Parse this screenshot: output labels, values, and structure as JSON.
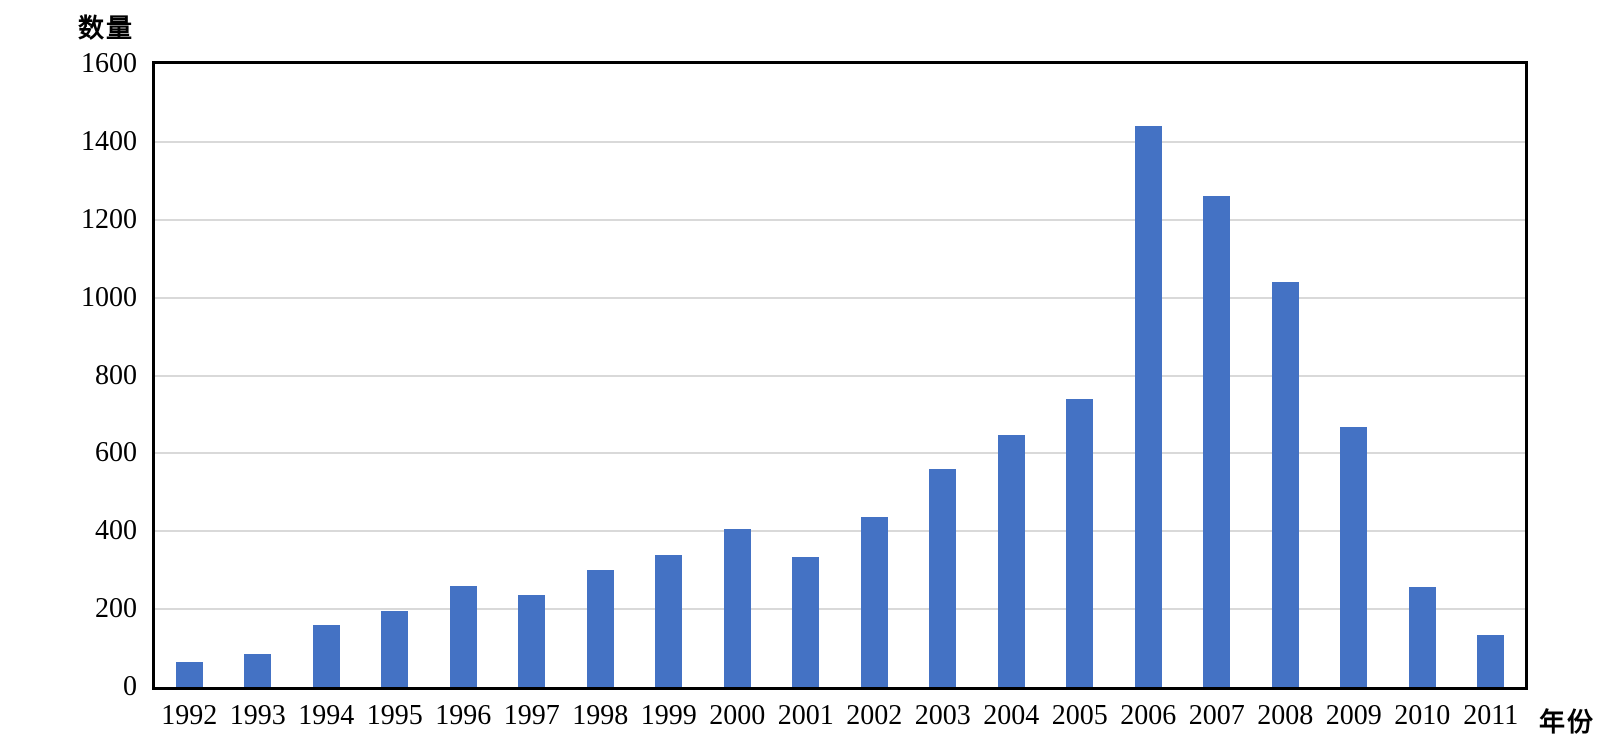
{
  "chart_data": {
    "type": "bar",
    "title": "",
    "ylabel": "数量",
    "xlabel": "年份",
    "categories": [
      "1992",
      "1993",
      "1994",
      "1995",
      "1996",
      "1997",
      "1998",
      "1999",
      "2000",
      "2001",
      "2002",
      "2003",
      "2004",
      "2005",
      "2006",
      "2007",
      "2008",
      "2009",
      "2010",
      "2011"
    ],
    "values": [
      65,
      85,
      160,
      195,
      260,
      235,
      300,
      338,
      405,
      333,
      437,
      560,
      648,
      740,
      1440,
      1260,
      1040,
      668,
      257,
      133
    ],
    "ylim": [
      0,
      1600
    ],
    "ytick_step": 200,
    "yticks": [
      0,
      200,
      400,
      600,
      800,
      1000,
      1200,
      1400,
      1600
    ],
    "grid": true,
    "legend": "none",
    "bar_color": "#4472C4",
    "gridline_color": "#D9D9D9",
    "axis_color": "#000000",
    "text_color": "#000000"
  }
}
